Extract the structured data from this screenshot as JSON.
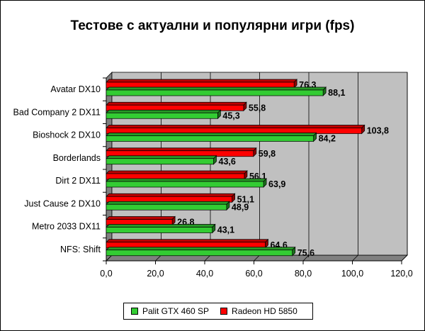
{
  "chart_data": {
    "type": "bar",
    "orientation": "horizontal",
    "title": "Тестове с актуални и популярни игри (fps)",
    "categories": [
      "Avatar DX10",
      "Bad Company 2 DX11",
      "Bioshock 2 DX10",
      "Borderlands",
      "Dirt 2 DX11",
      "Just Cause 2 DX10",
      "Metro 2033 DX11",
      "NFS: Shift"
    ],
    "series": [
      {
        "name": "Radeon HD 5850",
        "color": "#ff0000",
        "values": [
          76.3,
          55.8,
          103.8,
          59.8,
          56.1,
          51.1,
          26.8,
          64.6
        ],
        "labels": [
          "76,3",
          "55,8",
          "103,8",
          "59,8",
          "56,1",
          "51,1",
          "26,8",
          "64,6"
        ]
      },
      {
        "name": "Palit GTX 460 SP",
        "color": "#33cc33",
        "values": [
          88.1,
          45.3,
          84.2,
          43.6,
          63.9,
          48.9,
          43.1,
          75.6
        ],
        "labels": [
          "88,1",
          "45,3",
          "84,2",
          "43,6",
          "63,9",
          "48,9",
          "43,1",
          "75,6"
        ]
      }
    ],
    "xlim": [
      0,
      120
    ],
    "ticks": [
      0,
      20,
      40,
      60,
      80,
      100,
      120
    ],
    "tick_labels": [
      "0,0",
      "20,0",
      "40,0",
      "60,0",
      "80,0",
      "100,0",
      "120,0"
    ],
    "grid": true,
    "legend_position": "bottom",
    "legend": [
      {
        "label": "Palit GTX 460 SP",
        "color": "#33cc33"
      },
      {
        "label": "Radeon HD 5850",
        "color": "#ff0000"
      }
    ],
    "plot_background": "#c0c0c0"
  }
}
